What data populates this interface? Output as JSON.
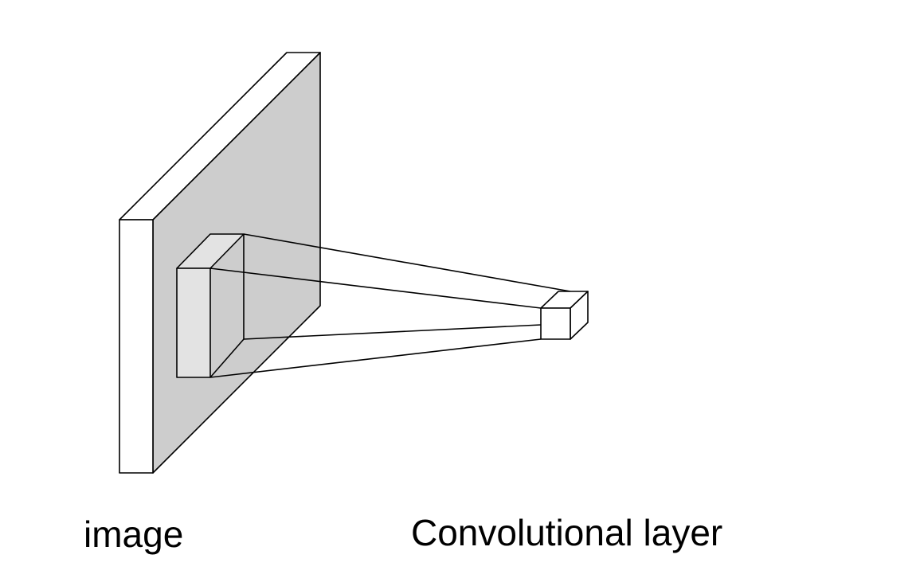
{
  "labels": {
    "image": "image",
    "convolutional_layer": "Convolutional layer"
  },
  "colors": {
    "image_face": "#cdcdcd",
    "receptive_field_face": "#e3e3e3",
    "box_face": "#ffffff",
    "stroke": "#000000"
  }
}
